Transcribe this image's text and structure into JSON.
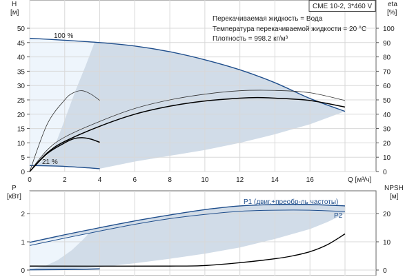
{
  "chart_data": [
    {
      "type": "line",
      "title": "CME 10-2, 3*460 V",
      "annotations": [
        "Перекачиваемая жидкость = Вода",
        "Температура перекачиваемой жидкости = 20 °C",
        "Плотность = 998.2 кг/м³"
      ],
      "xlabel": "Q [м³/ч]",
      "ylabel": "H",
      "ylabel_unit": "[м]",
      "y2label": "eta",
      "y2label_unit": "[%]",
      "xlim": [
        0,
        18
      ],
      "ylim": [
        0,
        50
      ],
      "y2lim": [
        0,
        100
      ],
      "xticks": [
        "0",
        "2",
        "4",
        "6",
        "8",
        "10",
        "12",
        "14",
        "16"
      ],
      "yticks": [
        "0",
        "5",
        "10",
        "15",
        "20",
        "25",
        "30",
        "35",
        "40",
        "45",
        "50"
      ],
      "y2ticks": [
        "0",
        "10",
        "20",
        "30",
        "40",
        "50",
        "60",
        "70",
        "80",
        "90",
        "100"
      ],
      "grid": true,
      "labels": {
        "speed_max": "100 %",
        "speed_min": "21 %"
      },
      "series": [
        {
          "name": "H 100 %",
          "axis": "H",
          "color": "#1f4e8c",
          "width": 1.4,
          "points": [
            [
              0,
              46.5
            ],
            [
              2,
              45.8
            ],
            [
              4,
              45
            ],
            [
              6,
              43.8
            ],
            [
              8,
              41.8
            ],
            [
              10,
              39
            ],
            [
              12,
              35.5
            ],
            [
              14,
              31
            ],
            [
              16,
              25.5
            ],
            [
              18,
              21
            ]
          ]
        },
        {
          "name": "H 21 %",
          "axis": "H",
          "color": "#1f4e8c",
          "width": 1.4,
          "points": [
            [
              0,
              2.1
            ],
            [
              2,
              1.8
            ],
            [
              4,
              1.0
            ]
          ]
        },
        {
          "name": "eta 100 % thin",
          "axis": "eta",
          "color": "#333",
          "width": 0.8,
          "points": [
            [
              0,
              0
            ],
            [
              1,
              15
            ],
            [
              2,
              24
            ],
            [
              4,
              35
            ],
            [
              6,
              44
            ],
            [
              8,
              50
            ],
            [
              10,
              54
            ],
            [
              12,
              56.4
            ],
            [
              14,
              56.6
            ],
            [
              16,
              55
            ],
            [
              18,
              49.6
            ]
          ]
        },
        {
          "name": "eta 100 % thick",
          "axis": "eta",
          "color": "#000",
          "width": 1.5,
          "points": [
            [
              0,
              0
            ],
            [
              1,
              13
            ],
            [
              2,
              21
            ],
            [
              4,
              31.6
            ],
            [
              6,
              40
            ],
            [
              8,
              45.6
            ],
            [
              10,
              49.2
            ],
            [
              12,
              51.2
            ],
            [
              13,
              51.6
            ],
            [
              14,
              51.2
            ],
            [
              16,
              49.6
            ],
            [
              18,
              45
            ]
          ]
        },
        {
          "name": "eta 21 % thin",
          "axis": "eta",
          "color": "#333",
          "width": 0.8,
          "points": [
            [
              0,
              0
            ],
            [
              1,
              33
            ],
            [
              2,
              50
            ],
            [
              2.5,
              55
            ],
            [
              3,
              56.4
            ],
            [
              3.5,
              54
            ],
            [
              4,
              49.6
            ]
          ]
        },
        {
          "name": "eta 21 % thick",
          "axis": "eta",
          "color": "#000",
          "width": 1.5,
          "points": [
            [
              0,
              0
            ],
            [
              1,
              12.5
            ],
            [
              2,
              20
            ],
            [
              2.5,
              22.8
            ],
            [
              3,
              23.6
            ],
            [
              3.5,
              22.6
            ],
            [
              4,
              20.4
            ]
          ]
        }
      ],
      "region_lower": [
        [
          18,
          21
        ],
        [
          16,
          16.5
        ],
        [
          14,
          13
        ],
        [
          12,
          10
        ],
        [
          10,
          7.5
        ],
        [
          8,
          5.5
        ],
        [
          6,
          3.5
        ],
        [
          4,
          1
        ]
      ],
      "region_light": [
        [
          3.7,
          45
        ],
        [
          3.2,
          37
        ],
        [
          2.6,
          28
        ],
        [
          2,
          18
        ],
        [
          1.5,
          10
        ],
        [
          0.8,
          4
        ],
        [
          0.3,
          2.1
        ]
      ]
    },
    {
      "type": "line",
      "xlim": [
        0,
        18
      ],
      "ylabel": "P",
      "ylabel_unit": "[кВт]",
      "y2label": "NPSH",
      "y2label_unit": "[м]",
      "ylim": [
        0,
        3
      ],
      "y2lim": [
        0,
        30
      ],
      "yticks": [
        "0",
        "1",
        "2"
      ],
      "y2ticks": [
        "0",
        "10",
        "20"
      ],
      "grid": true,
      "labels": {
        "p1": "P1 (двиг.+преобр-ль частоты)",
        "p2": "P2"
      },
      "series": [
        {
          "name": "P1",
          "axis": "P",
          "color": "#1f4e8c",
          "width": 1.4,
          "points": [
            [
              0,
              0.98
            ],
            [
              2,
              1.25
            ],
            [
              4,
              1.5
            ],
            [
              6,
              1.74
            ],
            [
              8,
              1.95
            ],
            [
              10,
              2.14
            ],
            [
              12,
              2.27
            ],
            [
              14,
              2.32
            ],
            [
              16,
              2.32
            ],
            [
              18,
              2.27
            ]
          ]
        },
        {
          "name": "P2",
          "axis": "P",
          "color": "#1f4e8c",
          "width": 1.0,
          "points": [
            [
              0,
              0.87
            ],
            [
              2,
              1.13
            ],
            [
              4,
              1.38
            ],
            [
              6,
              1.62
            ],
            [
              8,
              1.82
            ],
            [
              10,
              1.97
            ],
            [
              12,
              2.08
            ],
            [
              14,
              2.12
            ],
            [
              16,
              2.12
            ],
            [
              18,
              2.07
            ]
          ]
        },
        {
          "name": "P 21 %",
          "axis": "P",
          "color": "#1f4e8c",
          "width": 1.6,
          "points": [
            [
              0,
              0.01
            ],
            [
              2,
              0.02
            ],
            [
              4,
              0.04
            ]
          ]
        },
        {
          "name": "NPSH",
          "axis": "NPSH",
          "color": "#000",
          "width": 1.4,
          "points": [
            [
              0,
              1.4
            ],
            [
              8,
              1.4
            ],
            [
              10,
              1.6
            ],
            [
              12,
              2.6
            ],
            [
              14,
              4
            ],
            [
              15,
              5
            ],
            [
              16,
              6.5
            ],
            [
              17,
              9
            ],
            [
              18,
              12.8
            ]
          ]
        }
      ],
      "region_lower": [
        [
          18,
          2.0
        ],
        [
          17,
          1.7
        ],
        [
          16,
          1.45
        ],
        [
          14,
          1.1
        ],
        [
          12,
          0.8
        ],
        [
          10,
          0.58
        ],
        [
          8,
          0.4
        ],
        [
          6,
          0.24
        ],
        [
          4,
          0.1
        ],
        [
          2,
          0.03
        ],
        [
          0,
          0
        ]
      ],
      "region_light": [
        [
          3.4,
          1.31
        ],
        [
          3,
          1.05
        ],
        [
          2.4,
          0.7
        ],
        [
          1.6,
          0.35
        ],
        [
          0.8,
          0.12
        ],
        [
          0,
          0.03
        ]
      ]
    }
  ]
}
